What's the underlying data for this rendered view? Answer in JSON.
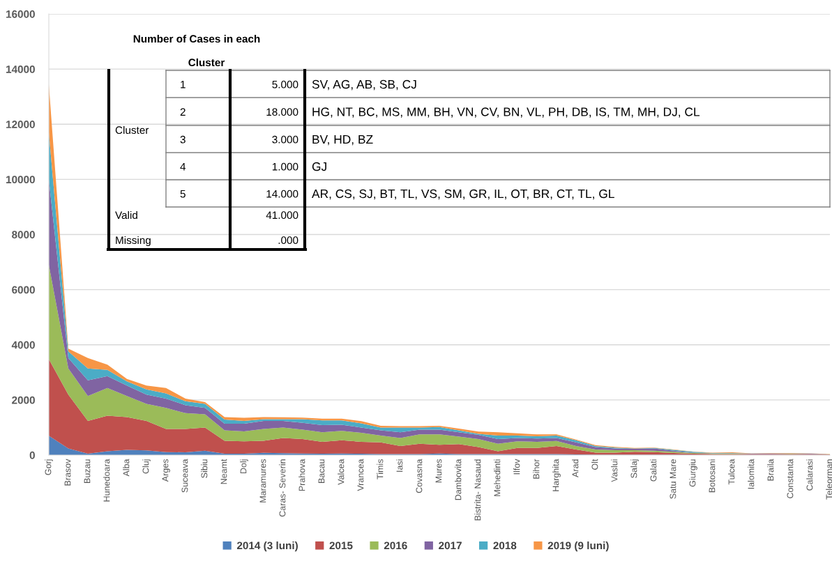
{
  "chart_data": {
    "type": "area",
    "stacked": true,
    "categories": [
      "Gorj",
      "Brasov",
      "Buzau",
      "Hunedoara",
      "Alba",
      "Cluj",
      "Arges",
      "Suceava",
      "Sibiu",
      "Neamt",
      "Dolj",
      "Maramures",
      "Caras- Severin",
      "Prahova",
      "Bacau",
      "Valcea",
      "Vrancea",
      "Timis",
      "Iasi",
      "Covasna",
      "Mures",
      "Dambovita",
      "Bistrita- Nasaud",
      "Mehedinti",
      "Ilfov",
      "Bihor",
      "Harghita",
      "Arad",
      "Olt",
      "Vaslui",
      "Salaj",
      "Galati",
      "Satu Mare",
      "Giurgiu",
      "Botosani",
      "Tulcea",
      "Ialomita",
      "Braila",
      "Constanta",
      "Calarasi",
      "Teleorman"
    ],
    "series": [
      {
        "name": "2014 (3 luni)",
        "color": "#4f81bd",
        "values": [
          700,
          240,
          50,
          140,
          190,
          170,
          110,
          100,
          160,
          50,
          50,
          80,
          70,
          60,
          50,
          60,
          50,
          35,
          35,
          40,
          60,
          40,
          35,
          35,
          35,
          35,
          35,
          25,
          15,
          15,
          15,
          15,
          15,
          8,
          8,
          8,
          8,
          8,
          8,
          8,
          8
        ]
      },
      {
        "name": "2015",
        "color": "#c0504d",
        "values": [
          2780,
          1950,
          1190,
          1290,
          1190,
          1070,
          840,
          850,
          840,
          470,
          450,
          440,
          550,
          520,
          430,
          480,
          430,
          425,
          295,
          370,
          310,
          360,
          255,
          105,
          225,
          225,
          295,
          175,
          75,
          75,
          105,
          95,
          60,
          42,
          32,
          32,
          27,
          27,
          27,
          27,
          17
        ]
      },
      {
        "name": "2016",
        "color": "#9bbb59",
        "values": [
          3420,
          950,
          900,
          1000,
          760,
          620,
          760,
          570,
          480,
          380,
          360,
          430,
          380,
          340,
          350,
          340,
          330,
          250,
          290,
          340,
          380,
          270,
          290,
          270,
          240,
          220,
          180,
          130,
          110,
          90,
          60,
          50,
          45,
          25,
          20,
          20,
          5,
          5,
          15,
          5,
          5
        ]
      },
      {
        "name": "2017",
        "color": "#8064a2",
        "values": [
          3100,
          380,
          570,
          430,
          380,
          330,
          340,
          290,
          230,
          240,
          280,
          290,
          240,
          250,
          260,
          220,
          190,
          190,
          210,
          170,
          170,
          160,
          150,
          170,
          120,
          120,
          110,
          130,
          90,
          60,
          50,
          80,
          40,
          15,
          5,
          5,
          10,
          20,
          5,
          10,
          0
        ]
      },
      {
        "name": "2018",
        "color": "#4bacc6",
        "values": [
          1700,
          240,
          430,
          230,
          150,
          190,
          190,
          140,
          150,
          150,
          100,
          60,
          60,
          130,
          170,
          160,
          150,
          100,
          170,
          80,
          100,
          70,
          40,
          130,
          90,
          80,
          90,
          80,
          40,
          30,
          10,
          20,
          30,
          30,
          10,
          10,
          5,
          5,
          10,
          5,
          0
        ]
      },
      {
        "name": "2019 (9 luni)",
        "color": "#f79646",
        "values": [
          1750,
          100,
          380,
          190,
          90,
          140,
          190,
          100,
          60,
          90,
          110,
          80,
          70,
          60,
          60,
          60,
          80,
          60,
          50,
          50,
          40,
          60,
          80,
          120,
          80,
          70,
          40,
          20,
          30,
          30,
          20,
          10,
          10,
          5,
          15,
          25,
          10,
          10,
          10,
          10,
          10
        ]
      }
    ],
    "ylim": [
      0,
      16000
    ],
    "yticks": [
      0,
      2000,
      4000,
      6000,
      8000,
      10000,
      12000,
      14000,
      16000
    ],
    "grid": "y",
    "legend": "bottom",
    "annotations": [
      "Number of Cases in each",
      "Cluster",
      "Cluster",
      "1",
      "5.000",
      "SV, AG, AB, SB, CJ",
      "2",
      "18.000",
      "HG, NT, BC, MS, MM, BH, VN, CV, BN, VL, PH, DB, IS, TM, MH, DJ, CL",
      "3",
      "3.000",
      "BV, HD, BZ",
      "4",
      "1.000",
      "GJ",
      "5",
      "14.000",
      "AR, CS, SJ, BT, TL, VS, SM, GR, IL, OT, BR, CT, TL, GL",
      "Valid",
      "41.000",
      "Missing",
      ".000"
    ]
  }
}
